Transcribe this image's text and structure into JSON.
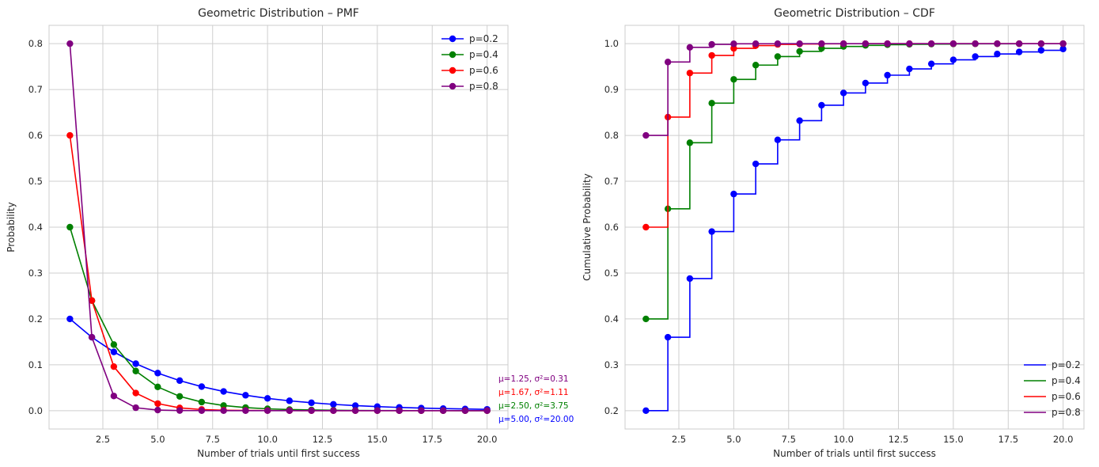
{
  "chart_data": [
    {
      "type": "line",
      "title": "Geometric Distribution – PMF",
      "xlabel": "Number of trials until first success",
      "ylabel": "Probability",
      "xlim": [
        0.05,
        20.95
      ],
      "ylim": [
        -0.04,
        0.84
      ],
      "xticks": [
        2.5,
        5.0,
        7.5,
        10.0,
        12.5,
        15.0,
        17.5,
        20.0
      ],
      "xtick_labels": [
        "2.5",
        "5.0",
        "7.5",
        "10.0",
        "12.5",
        "15.0",
        "17.5",
        "20.0"
      ],
      "yticks": [
        0.0,
        0.1,
        0.2,
        0.3,
        0.4,
        0.5,
        0.6,
        0.7,
        0.8
      ],
      "ytick_labels": [
        "0.0",
        "0.1",
        "0.2",
        "0.3",
        "0.4",
        "0.5",
        "0.6",
        "0.7",
        "0.8"
      ],
      "grid": true,
      "legend_position": "upper right",
      "x": [
        1,
        2,
        3,
        4,
        5,
        6,
        7,
        8,
        9,
        10,
        11,
        12,
        13,
        14,
        15,
        16,
        17,
        18,
        19,
        20
      ],
      "series": [
        {
          "name": "p=0.2",
          "color": "#0000ff",
          "values": [
            0.2,
            0.16,
            0.128,
            0.1024,
            0.0819,
            0.0655,
            0.0524,
            0.0419,
            0.0336,
            0.0268,
            0.0215,
            0.0172,
            0.0137,
            0.011,
            0.0088,
            0.007,
            0.0056,
            0.0045,
            0.0036,
            0.0029
          ]
        },
        {
          "name": "p=0.4",
          "color": "#008000",
          "values": [
            0.4,
            0.24,
            0.144,
            0.0864,
            0.0518,
            0.0311,
            0.0187,
            0.0112,
            0.0067,
            0.004,
            0.0024,
            0.0015,
            0.0009,
            0.0005,
            0.0003,
            0.0002,
            0.0001,
            0.0001,
            0.0,
            0.0
          ]
        },
        {
          "name": "p=0.6",
          "color": "#ff0000",
          "values": [
            0.6,
            0.24,
            0.096,
            0.0384,
            0.0154,
            0.0061,
            0.0025,
            0.001,
            0.0004,
            0.0002,
            0.0001,
            0.0,
            0.0,
            0.0,
            0.0,
            0.0,
            0.0,
            0.0,
            0.0,
            0.0
          ]
        },
        {
          "name": "p=0.8",
          "color": "#800080",
          "values": [
            0.8,
            0.16,
            0.032,
            0.0064,
            0.0013,
            0.0003,
            0.0001,
            0.0,
            0.0,
            0.0,
            0.0,
            0.0,
            0.0,
            0.0,
            0.0,
            0.0,
            0.0,
            0.0,
            0.0,
            0.0
          ]
        }
      ],
      "annotations": [
        {
          "text": "μ=1.25, σ²=0.31",
          "color": "#800080"
        },
        {
          "text": "μ=1.67, σ²=1.11",
          "color": "#ff0000"
        },
        {
          "text": "μ=2.50, σ²=3.75",
          "color": "#008000"
        },
        {
          "text": "μ=5.00, σ²=20.00",
          "color": "#0000ff"
        }
      ]
    },
    {
      "type": "line",
      "subtype": "step",
      "title": "Geometric Distribution – CDF",
      "xlabel": "Number of trials until first success",
      "ylabel": "Cumulative Probability",
      "xlim": [
        0.05,
        20.95
      ],
      "ylim": [
        0.16,
        1.04
      ],
      "xticks": [
        2.5,
        5.0,
        7.5,
        10.0,
        12.5,
        15.0,
        17.5,
        20.0
      ],
      "xtick_labels": [
        "2.5",
        "5.0",
        "7.5",
        "10.0",
        "12.5",
        "15.0",
        "17.5",
        "20.0"
      ],
      "yticks": [
        0.2,
        0.3,
        0.4,
        0.5,
        0.6,
        0.7,
        0.8,
        0.9,
        1.0
      ],
      "ytick_labels": [
        "0.2",
        "0.3",
        "0.4",
        "0.5",
        "0.6",
        "0.7",
        "0.8",
        "0.9",
        "1.0"
      ],
      "grid": true,
      "legend_position": "lower right",
      "x": [
        1,
        2,
        3,
        4,
        5,
        6,
        7,
        8,
        9,
        10,
        11,
        12,
        13,
        14,
        15,
        16,
        17,
        18,
        19,
        20
      ],
      "series": [
        {
          "name": "p=0.2",
          "color": "#0000ff",
          "values": [
            0.2,
            0.36,
            0.488,
            0.5904,
            0.6723,
            0.7379,
            0.7903,
            0.8322,
            0.8658,
            0.8926,
            0.9141,
            0.9313,
            0.945,
            0.956,
            0.9648,
            0.9719,
            0.9775,
            0.982,
            0.9856,
            0.9885
          ]
        },
        {
          "name": "p=0.4",
          "color": "#008000",
          "values": [
            0.4,
            0.64,
            0.784,
            0.8704,
            0.9222,
            0.9533,
            0.972,
            0.9832,
            0.9899,
            0.994,
            0.9964,
            0.9978,
            0.9987,
            0.9992,
            0.9995,
            0.9997,
            0.9998,
            0.9999,
            0.9999,
            1.0
          ]
        },
        {
          "name": "p=0.6",
          "color": "#ff0000",
          "values": [
            0.6,
            0.84,
            0.936,
            0.9744,
            0.9898,
            0.9959,
            0.9984,
            0.9993,
            0.9997,
            0.9999,
            1.0,
            1.0,
            1.0,
            1.0,
            1.0,
            1.0,
            1.0,
            1.0,
            1.0,
            1.0
          ]
        },
        {
          "name": "p=0.8",
          "color": "#800080",
          "values": [
            0.8,
            0.96,
            0.992,
            0.9984,
            0.9997,
            0.9999,
            1.0,
            1.0,
            1.0,
            1.0,
            1.0,
            1.0,
            1.0,
            1.0,
            1.0,
            1.0,
            1.0,
            1.0,
            1.0,
            1.0
          ]
        }
      ]
    }
  ]
}
